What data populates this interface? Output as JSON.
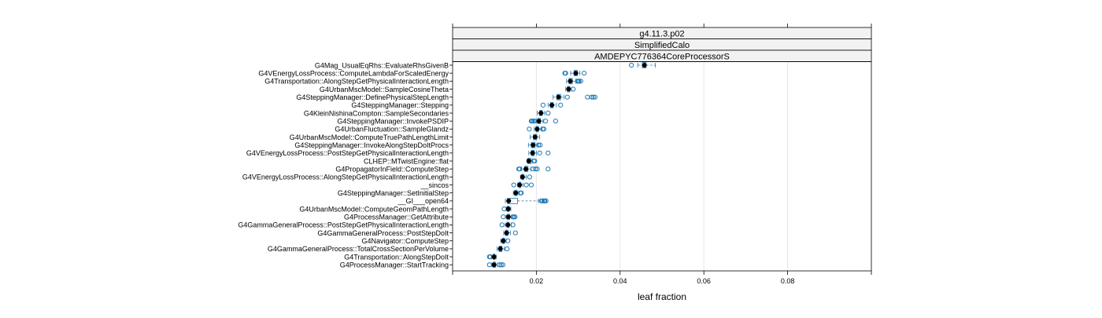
{
  "chart_data": {
    "type": "boxplot",
    "strips": [
      "g4.11.3.p02",
      "SimplifiedCalo",
      "AMDEPYC776364CoreProcessorS"
    ],
    "xlabel": "leaf fraction",
    "xlim": [
      0.0,
      0.1
    ],
    "xticks": [
      0.02,
      0.04,
      0.06,
      0.08
    ],
    "xtick_labels": [
      "0.02",
      "0.04",
      "0.06",
      "0.08"
    ],
    "grid": true,
    "colors": {
      "box": "#1f78b4",
      "median": "#000000",
      "strip": "#f2f2f2",
      "grid": "#e6e6e6"
    },
    "categories": [
      {
        "label": "G4Mag_UsualEqRhs::EvaluateRhsGivenB",
        "min": 0.0442,
        "q1": 0.0453,
        "median": 0.0458,
        "q3": 0.0462,
        "max": 0.0484,
        "outliers": [
          0.0427
        ]
      },
      {
        "label": "G4VEnergyLossProcess::ComputeLambdaForScaledEnergy",
        "min": 0.0282,
        "q1": 0.029,
        "median": 0.0294,
        "q3": 0.0298,
        "max": 0.0304,
        "outliers": [
          0.0268,
          0.027,
          0.0314
        ]
      },
      {
        "label": "G4Transportation::AlongStepGetPhysicalInteractionLength",
        "min": 0.0272,
        "q1": 0.0278,
        "median": 0.0281,
        "q3": 0.0286,
        "max": 0.0294,
        "outliers": [
          0.0298,
          0.03,
          0.0302,
          0.0306
        ]
      },
      {
        "label": "G4UrbanMscModel::SampleCosineTheta",
        "min": 0.027,
        "q1": 0.0274,
        "median": 0.0277,
        "q3": 0.028,
        "max": 0.0284,
        "outliers": [
          0.0288
        ]
      },
      {
        "label": "G4SteppingManager::DefinePhysicalStepLength",
        "min": 0.024,
        "q1": 0.0249,
        "median": 0.0253,
        "q3": 0.0258,
        "max": 0.0266,
        "outliers": [
          0.0274,
          0.0322,
          0.0332,
          0.0336,
          0.034
        ]
      },
      {
        "label": "G4SteppingManager::Stepping",
        "min": 0.0228,
        "q1": 0.0234,
        "median": 0.0237,
        "q3": 0.024,
        "max": 0.0248,
        "outliers": [
          0.0216,
          0.0258
        ]
      },
      {
        "label": "G4KleinNishinaCompton::SampleSecondaries",
        "min": 0.0202,
        "q1": 0.0208,
        "median": 0.0211,
        "q3": 0.0214,
        "max": 0.022,
        "outliers": [
          0.0228
        ]
      },
      {
        "label": "G4SteppingManager::InvokePSDIP",
        "min": 0.02,
        "q1": 0.0203,
        "median": 0.0206,
        "q3": 0.021,
        "max": 0.0216,
        "outliers": [
          0.0188,
          0.019,
          0.0193,
          0.0196,
          0.0222,
          0.0246
        ]
      },
      {
        "label": "G4UrbanFluctuation::SampleGlandz",
        "min": 0.0195,
        "q1": 0.0199,
        "median": 0.0202,
        "q3": 0.0205,
        "max": 0.0212,
        "outliers": [
          0.0183,
          0.0215,
          0.0218
        ]
      },
      {
        "label": "G4UrbanMscModel::ComputeTruePathLengthLimit",
        "min": 0.0185,
        "q1": 0.0193,
        "median": 0.0197,
        "q3": 0.0201,
        "max": 0.0208,
        "outliers": []
      },
      {
        "label": "G4SteppingManager::InvokeAlongStepDoItProcs",
        "min": 0.0181,
        "q1": 0.0188,
        "median": 0.0192,
        "q3": 0.0197,
        "max": 0.0203,
        "outliers": [
          0.0205,
          0.0209
        ]
      },
      {
        "label": "G4VEnergyLossProcess::PostStepGetPhysicalInteractionLength",
        "min": 0.0182,
        "q1": 0.0188,
        "median": 0.0191,
        "q3": 0.0195,
        "max": 0.02,
        "outliers": [
          0.0208,
          0.0228
        ]
      },
      {
        "label": "CLHEP::MTwistEngine::flat",
        "min": 0.0178,
        "q1": 0.018,
        "median": 0.0182,
        "q3": 0.0187,
        "max": 0.019,
        "outliers": [
          0.0194,
          0.0196
        ]
      },
      {
        "label": "G4PropagatorInField::ComputeStep",
        "min": 0.0165,
        "q1": 0.0172,
        "median": 0.0175,
        "q3": 0.018,
        "max": 0.0187,
        "outliers": [
          0.0158,
          0.016,
          0.0192,
          0.0198,
          0.0202,
          0.0228
        ]
      },
      {
        "label": "G4VEnergyLossProcess::AlongStepGetPhysicalInteractionLength",
        "min": 0.0162,
        "q1": 0.0165,
        "median": 0.0167,
        "q3": 0.017,
        "max": 0.0176,
        "outliers": [
          0.0184
        ]
      },
      {
        "label": "__sincos",
        "min": 0.0155,
        "q1": 0.0158,
        "median": 0.016,
        "q3": 0.0163,
        "max": 0.0168,
        "outliers": [
          0.0146,
          0.0176,
          0.0188
        ]
      },
      {
        "label": "G4SteppingManager::SetInitialStep",
        "min": 0.0145,
        "q1": 0.0148,
        "median": 0.0151,
        "q3": 0.0154,
        "max": 0.0158,
        "outliers": [
          0.0162,
          0.0164
        ]
      },
      {
        "label": "__GI___open64",
        "min": 0.0126,
        "q1": 0.0131,
        "median": 0.0134,
        "q3": 0.0155,
        "max": 0.0205,
        "outliers": [
          0.0212,
          0.0214,
          0.0218,
          0.022,
          0.0223
        ]
      },
      {
        "label": "G4UrbanMscModel::ComputeGeomPathLength",
        "min": 0.0128,
        "q1": 0.0131,
        "median": 0.0133,
        "q3": 0.0135,
        "max": 0.0139,
        "outliers": [
          0.0123
        ]
      },
      {
        "label": "G4ProcessManager::GetAttribute",
        "min": 0.0128,
        "q1": 0.0131,
        "median": 0.0133,
        "q3": 0.0136,
        "max": 0.0141,
        "outliers": [
          0.0121,
          0.0144,
          0.0146,
          0.0149
        ]
      },
      {
        "label": "G4GammaGeneralProcess::PostStepGetPhysicalInteractionLength",
        "min": 0.0126,
        "q1": 0.013,
        "median": 0.0132,
        "q3": 0.0135,
        "max": 0.014,
        "outliers": [
          0.0118,
          0.0144
        ]
      },
      {
        "label": "G4GammaGeneralProcess::PostStepDoIt",
        "min": 0.0122,
        "q1": 0.0126,
        "median": 0.0129,
        "q3": 0.0132,
        "max": 0.0138,
        "outliers": [
          0.015
        ]
      },
      {
        "label": "G4Navigator::ComputeStep",
        "min": 0.0115,
        "q1": 0.0119,
        "median": 0.0121,
        "q3": 0.0124,
        "max": 0.0128,
        "outliers": [
          0.0132
        ]
      },
      {
        "label": "G4GammaGeneralProcess::TotalCrossSectionPerVolume",
        "min": 0.0106,
        "q1": 0.0111,
        "median": 0.0114,
        "q3": 0.0118,
        "max": 0.0124,
        "outliers": [
          0.013
        ]
      },
      {
        "label": "G4Transportation::AlongStepDoIt",
        "min": 0.0093,
        "q1": 0.0097,
        "median": 0.0099,
        "q3": 0.0101,
        "max": 0.0104,
        "outliers": [
          0.0088,
          0.009
        ]
      },
      {
        "label": "G4ProcessManager::StartTracking",
        "min": 0.0094,
        "q1": 0.0097,
        "median": 0.0099,
        "q3": 0.0102,
        "max": 0.0107,
        "outliers": [
          0.0088,
          0.0112,
          0.0116,
          0.012
        ]
      }
    ]
  }
}
